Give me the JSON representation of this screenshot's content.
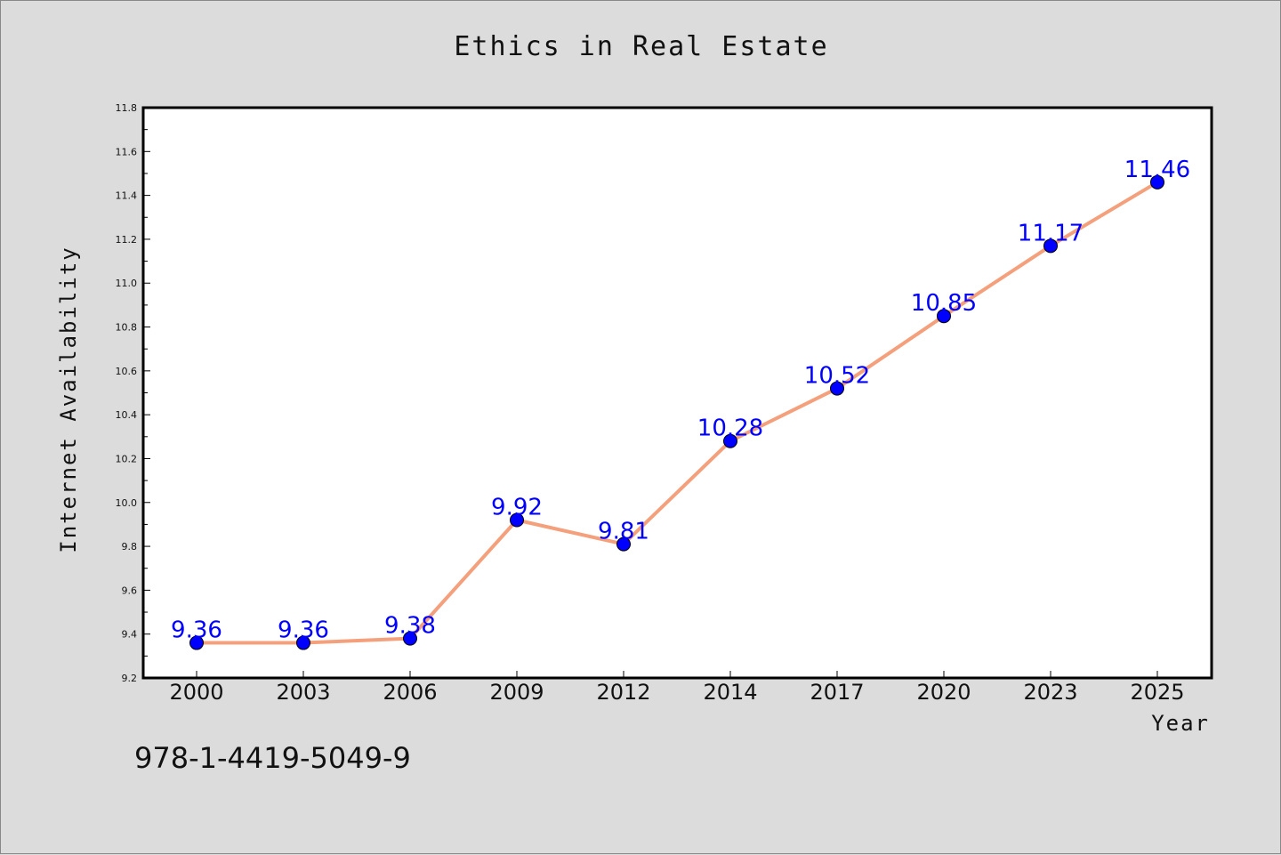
{
  "chart_data": {
    "type": "line",
    "title": "Ethics in Real Estate",
    "xlabel": "Year",
    "ylabel": "Internet Availability",
    "categories": [
      "2000",
      "2003",
      "2006",
      "2009",
      "2012",
      "2014",
      "2017",
      "2020",
      "2023",
      "2025"
    ],
    "series": [
      {
        "values": [
          9.36,
          9.36,
          9.38,
          9.92,
          9.81,
          10.28,
          10.52,
          10.85,
          11.17,
          11.46
        ],
        "line_color": "#f4a07c",
        "marker_color": "#0000ff"
      }
    ],
    "data_labels": [
      "9.36",
      "9.36",
      "9.38",
      "9.92",
      "9.81",
      "10.28",
      "10.52",
      "10.85",
      "11.17",
      "11.46"
    ],
    "ylim": [
      9.2,
      11.8
    ],
    "yticks": [
      "9.2",
      "9.4",
      "9.6",
      "9.8",
      "10.0",
      "10.2",
      "10.4",
      "10.6",
      "10.8",
      "11.0",
      "11.2",
      "11.4",
      "11.6",
      "11.8"
    ],
    "grid": false,
    "legend": "none"
  },
  "caption": "978-1-4419-5049-9",
  "colors": {
    "background": "#dcdcdc",
    "plot_background": "#ffffff",
    "label_color": "#0000ff"
  }
}
